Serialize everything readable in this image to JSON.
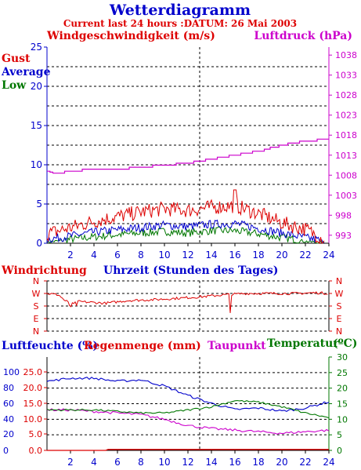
{
  "header": {
    "title": "Wetterdiagramm",
    "subtitle": "Current last 24 hours :DATUM: 26 Mai 2003"
  },
  "colors": {
    "red": "#dd0000",
    "blue": "#0000cc",
    "green": "#007700",
    "magenta": "#cc00cc",
    "grid": "#000000"
  },
  "chart_data": [
    {
      "type": "line",
      "title": "",
      "label_left": "Windgeschwindigkeit (m/s)",
      "label_right": "Luftdruck (hPa)",
      "xlabel": "",
      "ylim": [
        0,
        25
      ],
      "ylim_right": [
        991,
        1040
      ],
      "x_ticks": [
        "2",
        "4",
        "6",
        "8",
        "10",
        "12",
        "14",
        "16",
        "18",
        "20",
        "22",
        "24"
      ],
      "y_ticks_left": [
        "0",
        "5",
        "10",
        "15",
        "20",
        "25"
      ],
      "y_ticks_right": [
        "993",
        "998",
        "1003",
        "1008",
        "1013",
        "1018",
        "1023",
        "1028",
        "1033",
        "1038"
      ],
      "series": [
        {
          "name": "Gust",
          "color": "#dd0000",
          "x": [
            0,
            2,
            4,
            6,
            8,
            10,
            12,
            14,
            16,
            18,
            20,
            22,
            23.5
          ],
          "values": [
            1,
            1.8,
            2.6,
            3.2,
            3.8,
            4.2,
            4.0,
            4.4,
            4.6,
            3.6,
            2.4,
            1.6,
            0.4
          ]
        },
        {
          "name": "Average",
          "color": "#0000cc",
          "x": [
            0,
            2,
            4,
            6,
            8,
            10,
            12,
            14,
            16,
            18,
            20,
            22,
            23.5
          ],
          "values": [
            0.4,
            0.8,
            1.3,
            1.6,
            1.9,
            2.2,
            2.0,
            2.3,
            2.4,
            1.8,
            1.2,
            0.6,
            0.2
          ]
        },
        {
          "name": "Low",
          "color": "#007700",
          "x": [
            0,
            2,
            4,
            6,
            8,
            10,
            12,
            14,
            16,
            18,
            20,
            22,
            23.5
          ],
          "values": [
            0.1,
            0.4,
            0.7,
            1.0,
            1.2,
            1.4,
            1.2,
            1.5,
            1.5,
            1.1,
            0.6,
            0.2,
            0
          ]
        },
        {
          "name": "Luftdruck",
          "color": "#cc00cc",
          "x": [
            0,
            1,
            2,
            4,
            6,
            8,
            10,
            12,
            14,
            16,
            18,
            20,
            22,
            24
          ],
          "values": [
            1008,
            1008.5,
            1009,
            1009.5,
            1009.5,
            1010,
            1010.5,
            1011,
            1012,
            1013,
            1014,
            1015.5,
            1016.5,
            1017
          ]
        }
      ]
    },
    {
      "type": "line",
      "title": "",
      "label_left": "Windrichtung",
      "xlabel": "Uhrzeit (Stunden des Tages)",
      "y_ticks": [
        "N",
        "W",
        "S",
        "E",
        "N"
      ],
      "series": [
        {
          "name": "Windrichtung",
          "color": "#dd0000",
          "x": [
            0,
            1,
            2,
            3,
            5,
            7,
            9,
            11,
            13,
            15,
            17,
            19,
            21,
            23,
            24
          ],
          "values": [
            270,
            260,
            180,
            210,
            200,
            220,
            225,
            235,
            245,
            260,
            270,
            270,
            270,
            275,
            270
          ]
        }
      ]
    },
    {
      "type": "line",
      "title": "",
      "label_left_1": "Luftfeuchte (%)",
      "label_left_2": "Regenmenge (mm)",
      "label_mid": "Taupunkt",
      "label_right": "Temperatur",
      "label_right_unit": "(ºC)",
      "y_ticks_humidity": [
        "0",
        "20",
        "40",
        "60",
        "80",
        "100"
      ],
      "y_ticks_rain": [
        "0.0",
        "5.0",
        "10.0",
        "15.0",
        "20.0",
        "25.0"
      ],
      "y_ticks_temp": [
        "0",
        "5",
        "10",
        "15",
        "20",
        "25",
        "30"
      ],
      "series": [
        {
          "name": "Luftfeuchte",
          "color": "#0000cc",
          "x": [
            0,
            2,
            4,
            6,
            8,
            10,
            12,
            14,
            16,
            18,
            20,
            22,
            24
          ],
          "values": [
            88,
            92,
            92,
            88,
            90,
            82,
            70,
            60,
            52,
            54,
            50,
            54,
            62
          ]
        },
        {
          "name": "Regenmenge",
          "color": "#dd0000",
          "x": [
            0,
            5,
            5.2,
            24
          ],
          "values": [
            0,
            0,
            0.3,
            0.3
          ]
        },
        {
          "name": "Taupunkt",
          "color": "#cc00cc",
          "x": [
            0,
            2,
            4,
            6,
            8,
            10,
            12,
            14,
            16,
            18,
            20,
            22,
            24
          ],
          "values": [
            13,
            13,
            12.5,
            12,
            11.5,
            10,
            8,
            7,
            6.5,
            6,
            5.5,
            6,
            6.5
          ]
        },
        {
          "name": "Temperatur",
          "color": "#007700",
          "x": [
            0,
            2,
            4,
            6,
            8,
            10,
            12,
            14,
            16,
            18,
            20,
            22,
            24
          ],
          "values": [
            13,
            13,
            13,
            12.5,
            12,
            12,
            13,
            14,
            16,
            15.5,
            14,
            12,
            10.5
          ]
        }
      ]
    }
  ]
}
